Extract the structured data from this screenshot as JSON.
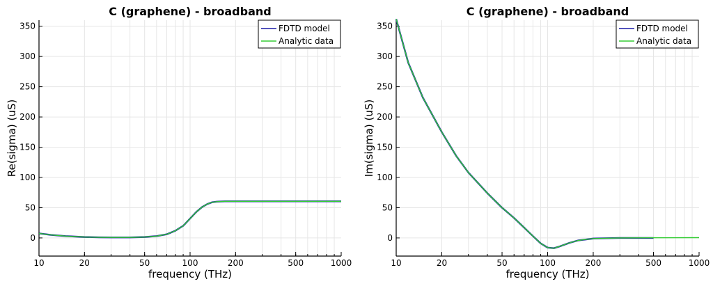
{
  "chart_data": [
    {
      "type": "line",
      "title": "C (graphene) - broadband",
      "xlabel": "frequency (THz)",
      "ylabel": "Re(sigma) (uS)",
      "xscale": "log",
      "xlim": [
        10,
        1000
      ],
      "ylim": [
        -30,
        360
      ],
      "xticks": [
        {
          "v": 10,
          "label": "10"
        },
        {
          "v": 20,
          "label": "20"
        },
        {
          "v": 50,
          "label": "50"
        },
        {
          "v": 100,
          "label": "100"
        },
        {
          "v": 200,
          "label": "200"
        },
        {
          "v": 500,
          "label": "500"
        },
        {
          "v": 1000,
          "label": "1000"
        }
      ],
      "yticks": [
        {
          "v": 0,
          "label": "0"
        },
        {
          "v": 50,
          "label": "50"
        },
        {
          "v": 100,
          "label": "100"
        },
        {
          "v": 150,
          "label": "150"
        },
        {
          "v": 200,
          "label": "200"
        },
        {
          "v": 250,
          "label": "250"
        },
        {
          "v": 300,
          "label": "300"
        },
        {
          "v": 350,
          "label": "350"
        }
      ],
      "grid": true,
      "legend_position": "top-right",
      "series": [
        {
          "name": "FDTD model",
          "color": "#1a1aa6",
          "x": [
            10,
            12,
            15,
            20,
            25,
            30,
            40,
            50,
            60,
            70,
            80,
            90,
            100,
            110,
            120,
            130,
            140,
            150,
            170,
            200,
            300,
            500,
            1000
          ],
          "y": [
            7.5,
            5,
            3,
            1.5,
            1,
            0.8,
            0.9,
            1.5,
            3,
            6,
            12,
            20,
            32,
            43,
            51,
            56,
            59,
            60,
            60.5,
            60.5,
            60.5,
            60.5,
            60.5
          ]
        },
        {
          "name": "Analytic data",
          "color": "#33cc33",
          "x": [
            10,
            12,
            15,
            20,
            25,
            30,
            40,
            50,
            60,
            70,
            80,
            90,
            100,
            110,
            120,
            130,
            140,
            150,
            170,
            200,
            300,
            500,
            1000
          ],
          "y": [
            7.5,
            5,
            3,
            1.5,
            1,
            0.8,
            0.9,
            1.5,
            3,
            6,
            12,
            20,
            32,
            43,
            51,
            56,
            59,
            60,
            60.5,
            60.5,
            60.5,
            60.5,
            60.5
          ]
        }
      ]
    },
    {
      "type": "line",
      "title": "C (graphene) - broadband",
      "xlabel": "frequency (THz)",
      "ylabel": "Im(sigma) (uS)",
      "xscale": "log",
      "xlim": [
        10,
        1000
      ],
      "ylim": [
        -30,
        360
      ],
      "xticks": [
        {
          "v": 10,
          "label": "10"
        },
        {
          "v": 20,
          "label": "20"
        },
        {
          "v": 50,
          "label": "50"
        },
        {
          "v": 100,
          "label": "100"
        },
        {
          "v": 200,
          "label": "200"
        },
        {
          "v": 500,
          "label": "500"
        },
        {
          "v": 1000,
          "label": "1000"
        }
      ],
      "yticks": [
        {
          "v": 0,
          "label": "0"
        },
        {
          "v": 50,
          "label": "50"
        },
        {
          "v": 100,
          "label": "100"
        },
        {
          "v": 150,
          "label": "150"
        },
        {
          "v": 200,
          "label": "200"
        },
        {
          "v": 250,
          "label": "250"
        },
        {
          "v": 300,
          "label": "300"
        },
        {
          "v": 350,
          "label": "350"
        }
      ],
      "grid": true,
      "legend_position": "top-right",
      "series": [
        {
          "name": "FDTD model",
          "color": "#1a1aa6",
          "x": [
            10,
            12,
            15,
            20,
            25,
            30,
            40,
            50,
            60,
            70,
            80,
            90,
            100,
            110,
            120,
            140,
            160,
            200,
            300,
            500
          ],
          "y": [
            362,
            290,
            232,
            175,
            135,
            108,
            74,
            50,
            33,
            17,
            3,
            -9,
            -16,
            -17,
            -14,
            -8,
            -4,
            -1,
            0,
            0
          ]
        },
        {
          "name": "Analytic data",
          "color": "#33cc33",
          "x": [
            10,
            12,
            15,
            20,
            25,
            30,
            40,
            50,
            60,
            70,
            80,
            90,
            100,
            110,
            120,
            140,
            160,
            200,
            300,
            500,
            1000
          ],
          "y": [
            362,
            290,
            232,
            175,
            135,
            108,
            74,
            50,
            33,
            17,
            3,
            -9,
            -16,
            -17,
            -14,
            -8,
            -4,
            -1,
            0,
            0.3,
            0.5
          ]
        }
      ]
    }
  ]
}
